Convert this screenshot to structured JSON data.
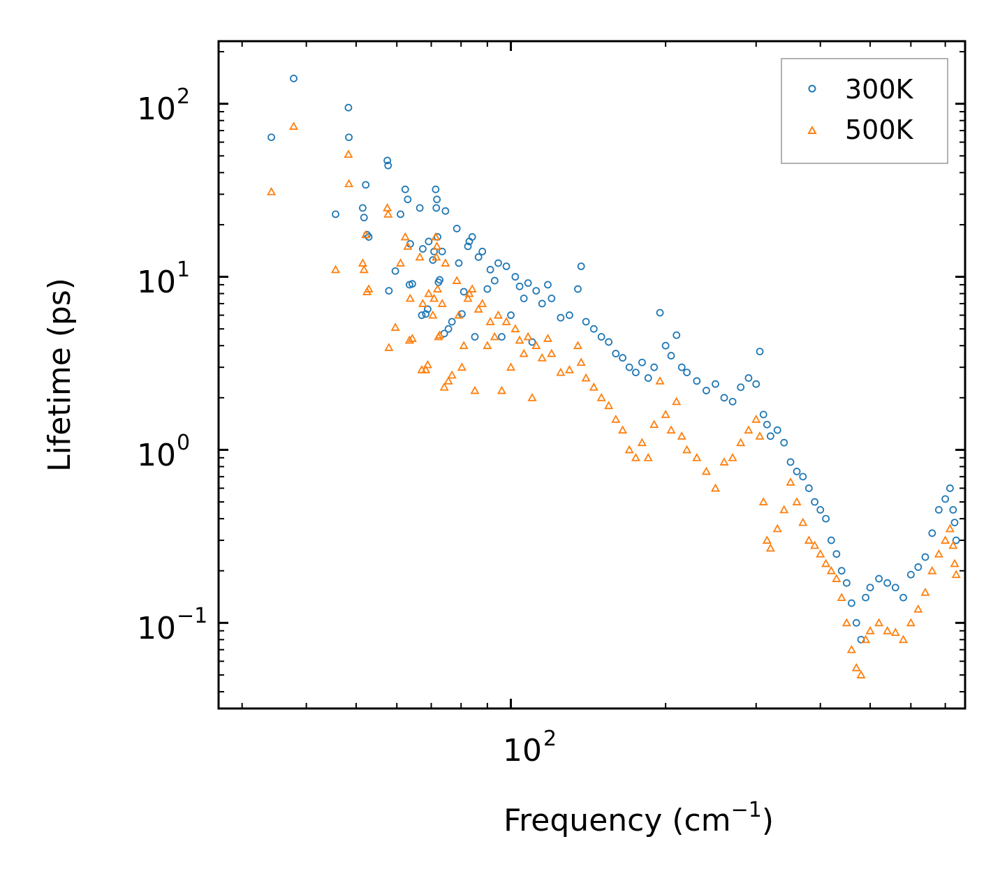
{
  "chart_data": {
    "type": "scatter",
    "title": "",
    "xlabel": "Frequency (cm",
    "xlabel_sup": "−1",
    "xlabel_close": ")",
    "ylabel": "Lifetime (ps)",
    "xscale": "log",
    "yscale": "log",
    "xlim": [
      27,
      765
    ],
    "ylim": [
      0.032,
      230
    ],
    "x_ticks": [
      {
        "base": "10",
        "exp": "2",
        "value": 100
      }
    ],
    "y_ticks": [
      {
        "base": "10",
        "exp": "2",
        "value": 100
      },
      {
        "base": "10",
        "exp": "1",
        "value": 10
      },
      {
        "base": "10",
        "exp": "0",
        "value": 1
      },
      {
        "base": "10",
        "exp": "−1",
        "value": 0.1
      }
    ],
    "legend_position": "top-right",
    "series": [
      {
        "name": "300K",
        "marker": "circle",
        "color": "#1f77b4",
        "points": [
          [
            34.2,
            64
          ],
          [
            37.8,
            140
          ],
          [
            45.6,
            23
          ],
          [
            48.3,
            95
          ],
          [
            48.4,
            64
          ],
          [
            51.5,
            25
          ],
          [
            51.8,
            22
          ],
          [
            52.2,
            34
          ],
          [
            52.5,
            17.5
          ],
          [
            52.9,
            17
          ],
          [
            57.5,
            47
          ],
          [
            57.7,
            44
          ],
          [
            57.9,
            8.3
          ],
          [
            59.6,
            10.8
          ],
          [
            61.0,
            23
          ],
          [
            62.3,
            32
          ],
          [
            63.0,
            28
          ],
          [
            63.5,
            9
          ],
          [
            63.7,
            15.5
          ],
          [
            64.3,
            9.1
          ],
          [
            66.5,
            25
          ],
          [
            67.1,
            6.0
          ],
          [
            67.4,
            14.5
          ],
          [
            68.3,
            6.1
          ],
          [
            68.9,
            6.5
          ],
          [
            69.2,
            16
          ],
          [
            70.5,
            12.5
          ],
          [
            70.9,
            14
          ],
          [
            71.4,
            32
          ],
          [
            71.6,
            25
          ],
          [
            71.8,
            28
          ],
          [
            72.0,
            17
          ],
          [
            72.3,
            9.3
          ],
          [
            72.7,
            9.6
          ],
          [
            73.5,
            14
          ],
          [
            74.2,
            4.7
          ],
          [
            74.6,
            24
          ],
          [
            75.6,
            5.0
          ],
          [
            76.8,
            5.5
          ],
          [
            78.5,
            19
          ],
          [
            79.2,
            12
          ],
          [
            80.3,
            6.1
          ],
          [
            81.0,
            8.2
          ],
          [
            82.5,
            15
          ],
          [
            83.0,
            16
          ],
          [
            84.1,
            17
          ],
          [
            85.1,
            4.5
          ],
          [
            86.5,
            13
          ],
          [
            88.0,
            14
          ],
          [
            90.0,
            8.5
          ],
          [
            91.2,
            11
          ],
          [
            93.0,
            9.5
          ],
          [
            94.5,
            12
          ],
          [
            96.0,
            4.5
          ],
          [
            98.0,
            11.5
          ],
          [
            100.0,
            6.0
          ],
          [
            102.0,
            10
          ],
          [
            104.0,
            8.8
          ],
          [
            106.0,
            7.5
          ],
          [
            108.0,
            9.2
          ],
          [
            110.0,
            4.2
          ],
          [
            112.0,
            8.3
          ],
          [
            115.0,
            7.0
          ],
          [
            118.0,
            9.0
          ],
          [
            120.0,
            7.5
          ],
          [
            125.0,
            5.8
          ],
          [
            130.0,
            6.0
          ],
          [
            135.0,
            8.5
          ],
          [
            137.0,
            11.5
          ],
          [
            140.0,
            5.5
          ],
          [
            145.0,
            5.0
          ],
          [
            150.0,
            4.5
          ],
          [
            155.0,
            4.2
          ],
          [
            160.0,
            3.6
          ],
          [
            165.0,
            3.4
          ],
          [
            170.0,
            3.0
          ],
          [
            175.0,
            2.8
          ],
          [
            180.0,
            3.2
          ],
          [
            185.0,
            2.6
          ],
          [
            190.0,
            3.0
          ],
          [
            195.0,
            6.2
          ],
          [
            200.0,
            4.0
          ],
          [
            205.0,
            3.5
          ],
          [
            210.0,
            4.6
          ],
          [
            215.0,
            3.0
          ],
          [
            220.0,
            2.8
          ],
          [
            230.0,
            2.5
          ],
          [
            240.0,
            2.2
          ],
          [
            250.0,
            2.4
          ],
          [
            260.0,
            2.0
          ],
          [
            270.0,
            1.9
          ],
          [
            280.0,
            2.3
          ],
          [
            290.0,
            2.6
          ],
          [
            300.0,
            2.4
          ],
          [
            305.0,
            3.7
          ],
          [
            310.0,
            1.6
          ],
          [
            315.0,
            1.4
          ],
          [
            320.0,
            1.2
          ],
          [
            330.0,
            1.3
          ],
          [
            340.0,
            1.1
          ],
          [
            350.0,
            0.85
          ],
          [
            360.0,
            0.75
          ],
          [
            370.0,
            0.7
          ],
          [
            380.0,
            0.6
          ],
          [
            390.0,
            0.5
          ],
          [
            400.0,
            0.45
          ],
          [
            410.0,
            0.4
          ],
          [
            420.0,
            0.3
          ],
          [
            430.0,
            0.25
          ],
          [
            440.0,
            0.2
          ],
          [
            450.0,
            0.17
          ],
          [
            460.0,
            0.13
          ],
          [
            470.0,
            0.1
          ],
          [
            480.0,
            0.08
          ],
          [
            490.0,
            0.14
          ],
          [
            500.0,
            0.16
          ],
          [
            520.0,
            0.18
          ],
          [
            540.0,
            0.17
          ],
          [
            560.0,
            0.16
          ],
          [
            580.0,
            0.14
          ],
          [
            600.0,
            0.19
          ],
          [
            620.0,
            0.21
          ],
          [
            640.0,
            0.24
          ],
          [
            660.0,
            0.33
          ],
          [
            680.0,
            0.45
          ],
          [
            700.0,
            0.52
          ],
          [
            715.0,
            0.6
          ],
          [
            725.0,
            0.45
          ],
          [
            730.0,
            0.38
          ],
          [
            735.0,
            0.3
          ]
        ]
      },
      {
        "name": "500K",
        "marker": "triangle",
        "color": "#ff7f0e",
        "points": [
          [
            34.2,
            31
          ],
          [
            37.8,
            74
          ],
          [
            45.6,
            11
          ],
          [
            48.3,
            51
          ],
          [
            48.4,
            34.5
          ],
          [
            51.5,
            12
          ],
          [
            51.8,
            11
          ],
          [
            52.2,
            17.5
          ],
          [
            52.5,
            8.2
          ],
          [
            52.9,
            8.5
          ],
          [
            57.5,
            25
          ],
          [
            57.7,
            23
          ],
          [
            57.9,
            3.9
          ],
          [
            59.6,
            5.1
          ],
          [
            61.0,
            12
          ],
          [
            62.3,
            17
          ],
          [
            63.0,
            15
          ],
          [
            63.5,
            4.3
          ],
          [
            63.7,
            7.5
          ],
          [
            64.3,
            4.4
          ],
          [
            66.5,
            13
          ],
          [
            67.1,
            2.9
          ],
          [
            67.4,
            7.0
          ],
          [
            68.3,
            2.9
          ],
          [
            68.9,
            3.1
          ],
          [
            69.2,
            8.0
          ],
          [
            70.5,
            6.0
          ],
          [
            70.9,
            7.5
          ],
          [
            71.4,
            17
          ],
          [
            71.6,
            13
          ],
          [
            71.8,
            15
          ],
          [
            72.0,
            8.5
          ],
          [
            72.3,
            4.5
          ],
          [
            72.7,
            4.6
          ],
          [
            73.5,
            7.0
          ],
          [
            74.2,
            2.3
          ],
          [
            74.6,
            12
          ],
          [
            75.6,
            2.5
          ],
          [
            76.8,
            2.7
          ],
          [
            78.5,
            9.5
          ],
          [
            79.2,
            6.0
          ],
          [
            80.3,
            3.0
          ],
          [
            81.0,
            4.0
          ],
          [
            82.5,
            7.5
          ],
          [
            83.0,
            8.0
          ],
          [
            84.1,
            8.5
          ],
          [
            85.1,
            2.2
          ],
          [
            86.5,
            6.5
          ],
          [
            88.0,
            7.0
          ],
          [
            90.0,
            4.0
          ],
          [
            91.2,
            5.5
          ],
          [
            93.0,
            4.5
          ],
          [
            94.5,
            6.0
          ],
          [
            96.0,
            2.2
          ],
          [
            98.0,
            5.5
          ],
          [
            100.0,
            3.0
          ],
          [
            102.0,
            5.0
          ],
          [
            104.0,
            4.3
          ],
          [
            106.0,
            3.6
          ],
          [
            108.0,
            4.5
          ],
          [
            110.0,
            2.0
          ],
          [
            112.0,
            4.0
          ],
          [
            115.0,
            3.4
          ],
          [
            118.0,
            4.4
          ],
          [
            120.0,
            3.6
          ],
          [
            125.0,
            2.8
          ],
          [
            130.0,
            2.9
          ],
          [
            135.0,
            4.0
          ],
          [
            137.0,
            3.2
          ],
          [
            140.0,
            2.6
          ],
          [
            145.0,
            2.3
          ],
          [
            150.0,
            2.0
          ],
          [
            155.0,
            1.8
          ],
          [
            160.0,
            1.5
          ],
          [
            165.0,
            1.3
          ],
          [
            170.0,
            1.0
          ],
          [
            175.0,
            0.9
          ],
          [
            180.0,
            1.1
          ],
          [
            185.0,
            0.9
          ],
          [
            190.0,
            1.4
          ],
          [
            195.0,
            2.5
          ],
          [
            200.0,
            1.6
          ],
          [
            205.0,
            1.3
          ],
          [
            210.0,
            1.9
          ],
          [
            215.0,
            1.2
          ],
          [
            220.0,
            1.0
          ],
          [
            230.0,
            0.9
          ],
          [
            240.0,
            0.75
          ],
          [
            250.0,
            0.6
          ],
          [
            260.0,
            0.85
          ],
          [
            270.0,
            0.9
          ],
          [
            280.0,
            1.1
          ],
          [
            290.0,
            1.3
          ],
          [
            300.0,
            1.5
          ],
          [
            305.0,
            1.2
          ],
          [
            310.0,
            0.5
          ],
          [
            315.0,
            0.3
          ],
          [
            320.0,
            0.27
          ],
          [
            330.0,
            0.35
          ],
          [
            340.0,
            0.45
          ],
          [
            350.0,
            0.65
          ],
          [
            360.0,
            0.5
          ],
          [
            370.0,
            0.38
          ],
          [
            380.0,
            0.3
          ],
          [
            390.0,
            0.28
          ],
          [
            400.0,
            0.25
          ],
          [
            410.0,
            0.22
          ],
          [
            420.0,
            0.2
          ],
          [
            430.0,
            0.18
          ],
          [
            440.0,
            0.14
          ],
          [
            450.0,
            0.1
          ],
          [
            460.0,
            0.07
          ],
          [
            470.0,
            0.055
          ],
          [
            480.0,
            0.05
          ],
          [
            490.0,
            0.08
          ],
          [
            500.0,
            0.09
          ],
          [
            520.0,
            0.1
          ],
          [
            540.0,
            0.09
          ],
          [
            560.0,
            0.088
          ],
          [
            580.0,
            0.08
          ],
          [
            600.0,
            0.1
          ],
          [
            620.0,
            0.12
          ],
          [
            640.0,
            0.15
          ],
          [
            660.0,
            0.2
          ],
          [
            680.0,
            0.25
          ],
          [
            700.0,
            0.3
          ],
          [
            715.0,
            0.35
          ],
          [
            725.0,
            0.28
          ],
          [
            730.0,
            0.22
          ],
          [
            735.0,
            0.19
          ]
        ]
      }
    ]
  }
}
